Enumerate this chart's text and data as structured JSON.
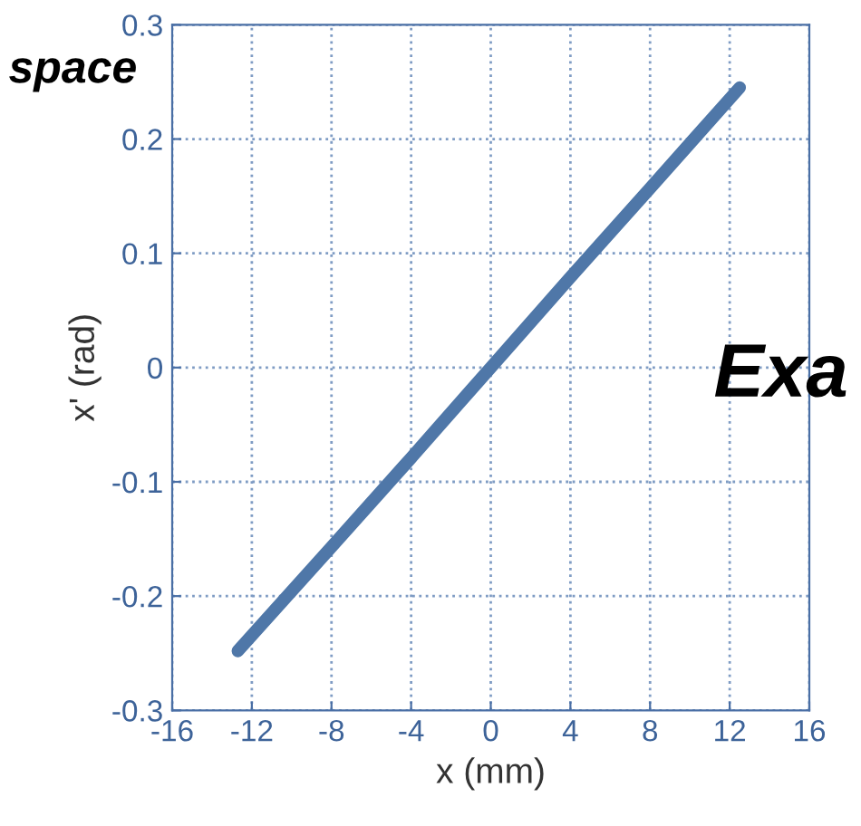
{
  "chart_data": {
    "type": "line",
    "xlabel": "x (mm)",
    "ylabel": "x' (rad)",
    "x": [
      -12.7,
      -8,
      -4,
      0,
      4,
      8,
      12.5
    ],
    "series": [
      {
        "color": "#4f77a8",
        "values": [
          -0.248,
          -0.157,
          -0.079,
          0,
          0.079,
          0.157,
          0.245
        ]
      }
    ],
    "xlim": [
      -16,
      16
    ],
    "xticks": [
      -16,
      -12,
      -8,
      -4,
      0,
      4,
      8,
      12,
      16
    ],
    "ylim": [
      -0.3,
      0.3
    ],
    "yticks": [
      -0.3,
      -0.2,
      -0.1,
      0,
      0.1,
      0.2,
      0.3
    ],
    "grid": true,
    "line_style": "solid",
    "annotations": [
      "space",
      "Exa"
    ]
  }
}
